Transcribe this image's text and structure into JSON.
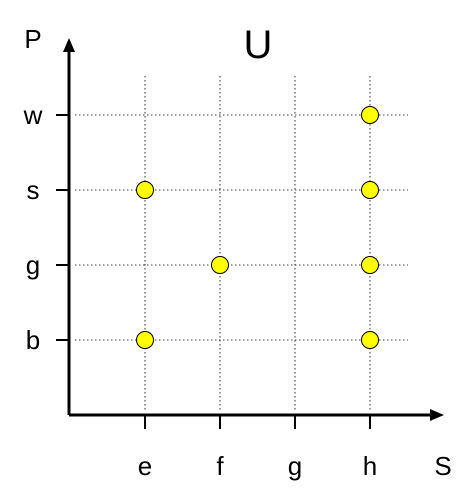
{
  "chart_data": {
    "type": "scatter",
    "title": "U",
    "xlabel": "S",
    "ylabel": "P",
    "x_categories": [
      "e",
      "f",
      "g",
      "h"
    ],
    "y_categories": [
      "b",
      "g",
      "s",
      "w"
    ],
    "grid": true,
    "legend": "none",
    "points": [
      {
        "x": "e",
        "y": "b"
      },
      {
        "x": "e",
        "y": "s"
      },
      {
        "x": "f",
        "y": "g"
      },
      {
        "x": "h",
        "y": "b"
      },
      {
        "x": "h",
        "y": "g"
      },
      {
        "x": "h",
        "y": "s"
      },
      {
        "x": "h",
        "y": "w"
      }
    ],
    "colors": {
      "point_fill": "#ffff00",
      "point_stroke": "#000000",
      "axis": "#000000",
      "grid": "#000000"
    }
  }
}
